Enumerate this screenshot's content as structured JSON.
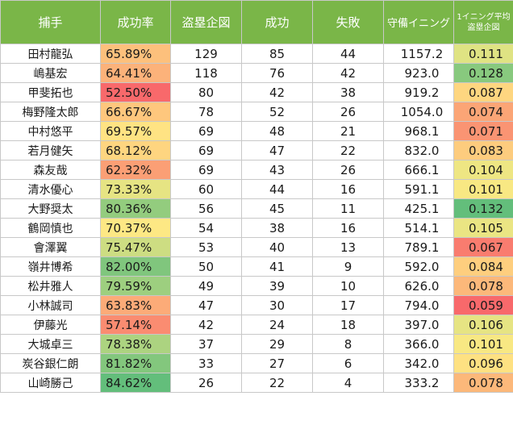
{
  "headers": [
    "捕手",
    "成功率",
    "盗塁企図",
    "成功",
    "失敗",
    "守備イニング",
    "1イニング平均盗塁企図"
  ],
  "rows": [
    {
      "name": "田村龍弘",
      "rate": "65.89%",
      "attempts": "129",
      "success": "85",
      "fail": "44",
      "innings": "1157.2",
      "avg": "0.111",
      "rate_color": "#fdc07c",
      "avg_color": "#dfe383"
    },
    {
      "name": "嶋基宏",
      "rate": "64.41%",
      "attempts": "118",
      "success": "76",
      "fail": "42",
      "innings": "923.0",
      "avg": "0.128",
      "rate_color": "#fcb27a",
      "avg_color": "#88c97e"
    },
    {
      "name": "甲斐拓也",
      "rate": "52.50%",
      "attempts": "80",
      "success": "42",
      "fail": "38",
      "innings": "919.2",
      "avg": "0.087",
      "rate_color": "#f8696b",
      "avg_color": "#fed680"
    },
    {
      "name": "梅野隆太郎",
      "rate": "66.67%",
      "attempts": "78",
      "success": "52",
      "fail": "26",
      "innings": "1054.0",
      "avg": "0.074",
      "rate_color": "#fec77d",
      "avg_color": "#fba576"
    },
    {
      "name": "中村悠平",
      "rate": "69.57%",
      "attempts": "69",
      "success": "48",
      "fail": "21",
      "innings": "968.1",
      "avg": "0.071",
      "rate_color": "#ffe383",
      "avg_color": "#fa9473"
    },
    {
      "name": "若月健矢",
      "rate": "68.12%",
      "attempts": "69",
      "success": "47",
      "fail": "22",
      "innings": "832.0",
      "avg": "0.083",
      "rate_color": "#fed580",
      "avg_color": "#fdcc7e"
    },
    {
      "name": "森友哉",
      "rate": "62.32%",
      "attempts": "69",
      "success": "43",
      "fail": "26",
      "innings": "666.1",
      "avg": "0.104",
      "rate_color": "#fb9f75",
      "avg_color": "#eee683"
    },
    {
      "name": "清水優心",
      "rate": "73.33%",
      "attempts": "60",
      "success": "44",
      "fail": "16",
      "innings": "591.1",
      "avg": "0.101",
      "rate_color": "#e6e483",
      "avg_color": "#f8e883"
    },
    {
      "name": "大野奨太",
      "rate": "80.36%",
      "attempts": "56",
      "success": "45",
      "fail": "11",
      "innings": "425.1",
      "avg": "0.132",
      "rate_color": "#93cc7e",
      "avg_color": "#63be7b"
    },
    {
      "name": "鶴岡慎也",
      "rate": "70.37%",
      "attempts": "54",
      "success": "38",
      "fail": "16",
      "innings": "514.1",
      "avg": "0.105",
      "rate_color": "#fde884",
      "avg_color": "#eae583"
    },
    {
      "name": "會澤翼",
      "rate": "75.47%",
      "attempts": "53",
      "success": "40",
      "fail": "13",
      "innings": "789.1",
      "avg": "0.067",
      "rate_color": "#cddd82",
      "avg_color": "#f97c6f"
    },
    {
      "name": "嶺井博希",
      "rate": "82.00%",
      "attempts": "50",
      "success": "41",
      "fail": "9",
      "innings": "592.0",
      "avg": "0.084",
      "rate_color": "#80c67d",
      "avg_color": "#fece7e"
    },
    {
      "name": "松井雅人",
      "rate": "79.59%",
      "attempts": "49",
      "success": "39",
      "fail": "10",
      "innings": "626.0",
      "avg": "0.078",
      "rate_color": "#9dcf7f",
      "avg_color": "#fcb87a"
    },
    {
      "name": "小林誠司",
      "rate": "63.83%",
      "attempts": "47",
      "success": "30",
      "fail": "17",
      "innings": "794.0",
      "avg": "0.059",
      "rate_color": "#fcab78",
      "avg_color": "#f8696b"
    },
    {
      "name": "伊藤光",
      "rate": "57.14%",
      "attempts": "42",
      "success": "24",
      "fail": "18",
      "innings": "397.0",
      "avg": "0.106",
      "rate_color": "#fa8c71",
      "avg_color": "#e6e483"
    },
    {
      "name": "大城卓三",
      "rate": "78.38%",
      "attempts": "37",
      "success": "29",
      "fail": "8",
      "innings": "366.0",
      "avg": "0.101",
      "rate_color": "#acd380",
      "avg_color": "#f8e883"
    },
    {
      "name": "炭谷銀仁朗",
      "rate": "81.82%",
      "attempts": "33",
      "success": "27",
      "fail": "6",
      "innings": "342.0",
      "avg": "0.096",
      "rate_color": "#83c77d",
      "avg_color": "#fee182"
    },
    {
      "name": "山崎勝己",
      "rate": "84.62%",
      "attempts": "26",
      "success": "22",
      "fail": "4",
      "innings": "333.2",
      "avg": "0.078",
      "rate_color": "#63be7b",
      "avg_color": "#fcb87a"
    }
  ]
}
